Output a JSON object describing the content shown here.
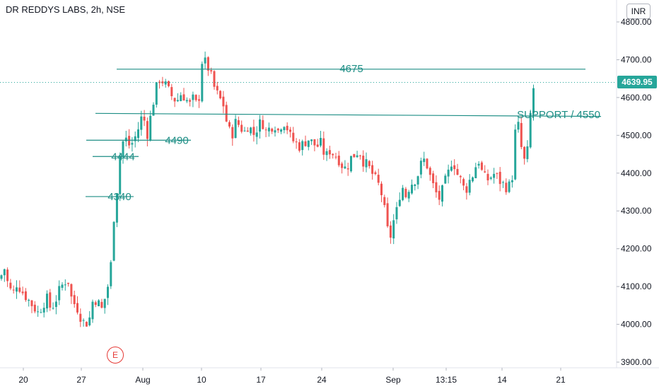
{
  "header": {
    "symbol_title": "DR REDDYS LABS, 2h, NSE",
    "currency": "INR"
  },
  "last_price_label": "4639.95",
  "earnings_badge": "E",
  "colors": {
    "up": "#26a69a",
    "down": "#ef5350",
    "annotation": "#1d8e85",
    "last_price_line": "#26a69a"
  },
  "chart_data": {
    "type": "candlestick",
    "y_axis": {
      "ticks": [
        "3900.00",
        "4000.00",
        "4100.00",
        "4200.00",
        "4300.00",
        "4400.00",
        "4500.00",
        "4600.00",
        "4700.00",
        "4800.00"
      ],
      "ylim": [
        3890,
        4825
      ]
    },
    "x_axis": {
      "tick_labels": [
        "20",
        "27",
        "Aug",
        "10",
        "17",
        "24",
        "Sep",
        "13:15",
        "14",
        "21"
      ]
    },
    "last_price": 4639.95,
    "levels": [
      {
        "label": "4675",
        "value": 4675
      },
      {
        "label": "SUPPORT / 4550",
        "value": 4555
      },
      {
        "label": "4490",
        "value": 4487
      },
      {
        "label": "4444",
        "value": 4444
      },
      {
        "label": "4340",
        "value": 4338
      }
    ],
    "close_path": [
      [
        0,
        4120
      ],
      [
        6,
        4150
      ],
      [
        12,
        4100
      ],
      [
        18,
        4080
      ],
      [
        24,
        4110
      ],
      [
        30,
        4090
      ],
      [
        36,
        4075
      ],
      [
        42,
        4060
      ],
      [
        48,
        4045
      ],
      [
        54,
        4030
      ],
      [
        60,
        4050
      ],
      [
        66,
        4070
      ],
      [
        72,
        4040
      ],
      [
        78,
        4060
      ],
      [
        84,
        4090
      ],
      [
        90,
        4110
      ],
      [
        96,
        4120
      ],
      [
        102,
        4060
      ],
      [
        108,
        4050
      ],
      [
        114,
        4020
      ],
      [
        120,
        4000
      ],
      [
        126,
        4010
      ],
      [
        132,
        4070
      ],
      [
        138,
        4060
      ],
      [
        144,
        4040
      ],
      [
        150,
        4080
      ],
      [
        156,
        4130
      ],
      [
        160,
        4270
      ],
      [
        164,
        4320
      ],
      [
        168,
        4420
      ],
      [
        172,
        4480
      ],
      [
        178,
        4490
      ],
      [
        184,
        4470
      ],
      [
        190,
        4490
      ],
      [
        196,
        4520
      ],
      [
        202,
        4560
      ],
      [
        208,
        4500
      ],
      [
        214,
        4560
      ],
      [
        220,
        4620
      ],
      [
        226,
        4650
      ],
      [
        232,
        4640
      ],
      [
        238,
        4620
      ],
      [
        244,
        4600
      ],
      [
        250,
        4590
      ],
      [
        256,
        4610
      ],
      [
        262,
        4600
      ],
      [
        268,
        4580
      ],
      [
        274,
        4600
      ],
      [
        280,
        4570
      ],
      [
        286,
        4700
      ],
      [
        292,
        4690
      ],
      [
        298,
        4660
      ],
      [
        304,
        4620
      ],
      [
        310,
        4600
      ],
      [
        316,
        4580
      ],
      [
        322,
        4520
      ],
      [
        328,
        4500
      ],
      [
        334,
        4540
      ],
      [
        340,
        4520
      ],
      [
        346,
        4510
      ],
      [
        352,
        4530
      ],
      [
        358,
        4500
      ],
      [
        364,
        4520
      ],
      [
        370,
        4540
      ],
      [
        376,
        4510
      ],
      [
        382,
        4520
      ],
      [
        388,
        4530
      ],
      [
        394,
        4510
      ],
      [
        400,
        4540
      ],
      [
        406,
        4520
      ],
      [
        412,
        4490
      ],
      [
        418,
        4480
      ],
      [
        424,
        4470
      ],
      [
        430,
        4480
      ],
      [
        436,
        4490
      ],
      [
        442,
        4480
      ],
      [
        448,
        4470
      ],
      [
        454,
        4480
      ],
      [
        460,
        4440
      ],
      [
        466,
        4460
      ],
      [
        472,
        4450
      ],
      [
        478,
        4440
      ],
      [
        484,
        4420
      ],
      [
        490,
        4410
      ],
      [
        496,
        4440
      ],
      [
        502,
        4450
      ],
      [
        508,
        4460
      ],
      [
        514,
        4430
      ],
      [
        520,
        4420
      ],
      [
        526,
        4400
      ],
      [
        532,
        4380
      ],
      [
        538,
        4360
      ],
      [
        544,
        4300
      ],
      [
        548,
        4250
      ],
      [
        552,
        4230
      ],
      [
        556,
        4270
      ],
      [
        560,
        4290
      ],
      [
        564,
        4330
      ],
      [
        568,
        4370
      ],
      [
        574,
        4340
      ],
      [
        580,
        4370
      ],
      [
        586,
        4380
      ],
      [
        592,
        4400
      ],
      [
        598,
        4440
      ],
      [
        604,
        4420
      ],
      [
        610,
        4380
      ],
      [
        616,
        4350
      ],
      [
        622,
        4330
      ],
      [
        628,
        4370
      ],
      [
        634,
        4400
      ],
      [
        640,
        4440
      ],
      [
        646,
        4400
      ],
      [
        652,
        4380
      ],
      [
        658,
        4350
      ],
      [
        664,
        4380
      ],
      [
        670,
        4400
      ],
      [
        676,
        4440
      ],
      [
        682,
        4400
      ],
      [
        688,
        4380
      ],
      [
        694,
        4390
      ],
      [
        700,
        4400
      ],
      [
        706,
        4380
      ],
      [
        712,
        4370
      ],
      [
        718,
        4360
      ],
      [
        724,
        4380
      ],
      [
        728,
        4500
      ],
      [
        732,
        4540
      ],
      [
        736,
        4480
      ],
      [
        740,
        4440
      ],
      [
        744,
        4420
      ],
      [
        748,
        4500
      ],
      [
        752,
        4600
      ],
      [
        756,
        4640
      ]
    ]
  }
}
